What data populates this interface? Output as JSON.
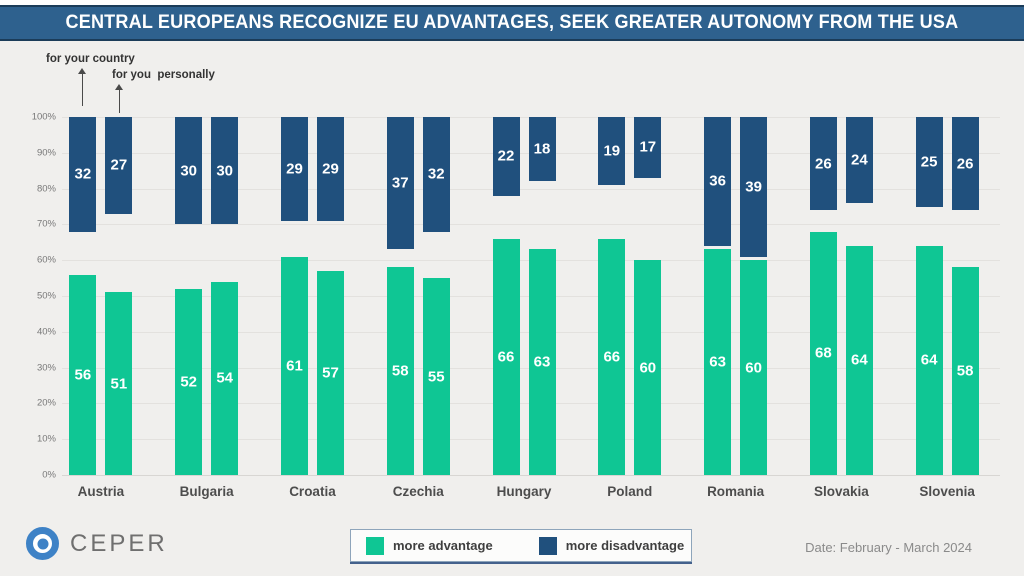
{
  "header": {
    "title": "CENTRAL EUROPEANS RECOGNIZE EU ADVANTAGES, SEEK GREATER AUTONOMY FROM THE USA"
  },
  "annotations": {
    "first_bar_label": "for your country",
    "second_bar_label": "for you  personally"
  },
  "chart_data": {
    "type": "bar",
    "title": "CENTRAL EUROPEANS RECOGNIZE EU ADVANTAGES, SEEK GREATER AUTONOMY FROM THE USA",
    "categories": [
      "Austria",
      "Bulgaria",
      "Croatia",
      "Czechia",
      "Hungary",
      "Poland",
      "Romania",
      "Slovakia",
      "Slovenia"
    ],
    "series": [
      {
        "name": "more advantage (for your country)",
        "color": "#0FC694",
        "values": [
          56,
          52,
          61,
          58,
          66,
          66,
          63,
          68,
          64
        ]
      },
      {
        "name": "more disadvantage (for your country)",
        "color": "#20507D",
        "values": [
          32,
          30,
          29,
          37,
          22,
          19,
          36,
          26,
          25
        ]
      },
      {
        "name": "more advantage (for you personally)",
        "color": "#0FC694",
        "values": [
          51,
          54,
          57,
          55,
          63,
          60,
          60,
          64,
          58
        ]
      },
      {
        "name": "more disadvantage (for you personally)",
        "color": "#20507D",
        "values": [
          27,
          30,
          29,
          32,
          18,
          17,
          39,
          24,
          26
        ]
      }
    ],
    "bar_layout": "advantage bars rise from 0%, disadvantage bars hang down from 100%",
    "ylim": [
      0,
      100
    ],
    "y_ticks": [
      "0%",
      "10%",
      "20%",
      "30%",
      "40%",
      "50%",
      "60%",
      "70%",
      "80%",
      "90%",
      "100%"
    ],
    "grid": true,
    "legend_position": "bottom",
    "legend": [
      {
        "label": "more advantage",
        "color": "#0FC694"
      },
      {
        "label": "more disadvantage",
        "color": "#20507D"
      }
    ]
  },
  "footer": {
    "logo_text": "CEPER",
    "date": "Date: February - March 2024"
  },
  "colors": {
    "background": "#F0EFED",
    "title_bar": "#2E618E",
    "title_bar_border": "#1B3C59",
    "advantage_green": "#0FC694",
    "disadvantage_navy": "#20507D",
    "logo_blue": "#3E82C6"
  }
}
